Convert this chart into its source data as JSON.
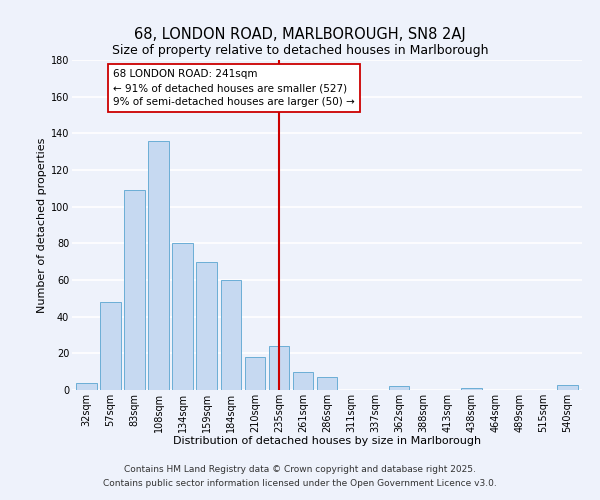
{
  "title": "68, LONDON ROAD, MARLBOROUGH, SN8 2AJ",
  "subtitle": "Size of property relative to detached houses in Marlborough",
  "xlabel": "Distribution of detached houses by size in Marlborough",
  "ylabel": "Number of detached properties",
  "bar_color": "#c6d9f1",
  "bar_edge_color": "#6baed6",
  "categories": [
    "32sqm",
    "57sqm",
    "83sqm",
    "108sqm",
    "134sqm",
    "159sqm",
    "184sqm",
    "210sqm",
    "235sqm",
    "261sqm",
    "286sqm",
    "311sqm",
    "337sqm",
    "362sqm",
    "388sqm",
    "413sqm",
    "438sqm",
    "464sqm",
    "489sqm",
    "515sqm",
    "540sqm"
  ],
  "values": [
    4,
    48,
    109,
    136,
    80,
    70,
    60,
    18,
    24,
    10,
    7,
    0,
    0,
    2,
    0,
    0,
    1,
    0,
    0,
    0,
    3
  ],
  "vline_x": 8,
  "vline_color": "#cc0000",
  "annotation_line1": "68 LONDON ROAD: 241sqm",
  "annotation_line2": "← 91% of detached houses are smaller (527)",
  "annotation_line3": "9% of semi-detached houses are larger (50) →",
  "box_facecolor": "white",
  "box_edgecolor": "#cc0000",
  "ylim": [
    0,
    180
  ],
  "yticks": [
    0,
    20,
    40,
    60,
    80,
    100,
    120,
    140,
    160,
    180
  ],
  "footer1": "Contains HM Land Registry data © Crown copyright and database right 2025.",
  "footer2": "Contains public sector information licensed under the Open Government Licence v3.0.",
  "background_color": "#eef2fb",
  "grid_color": "#ffffff",
  "title_fontsize": 10.5,
  "subtitle_fontsize": 9,
  "label_fontsize": 8,
  "tick_fontsize": 7,
  "footer_fontsize": 6.5,
  "annotation_fontsize": 7.5
}
